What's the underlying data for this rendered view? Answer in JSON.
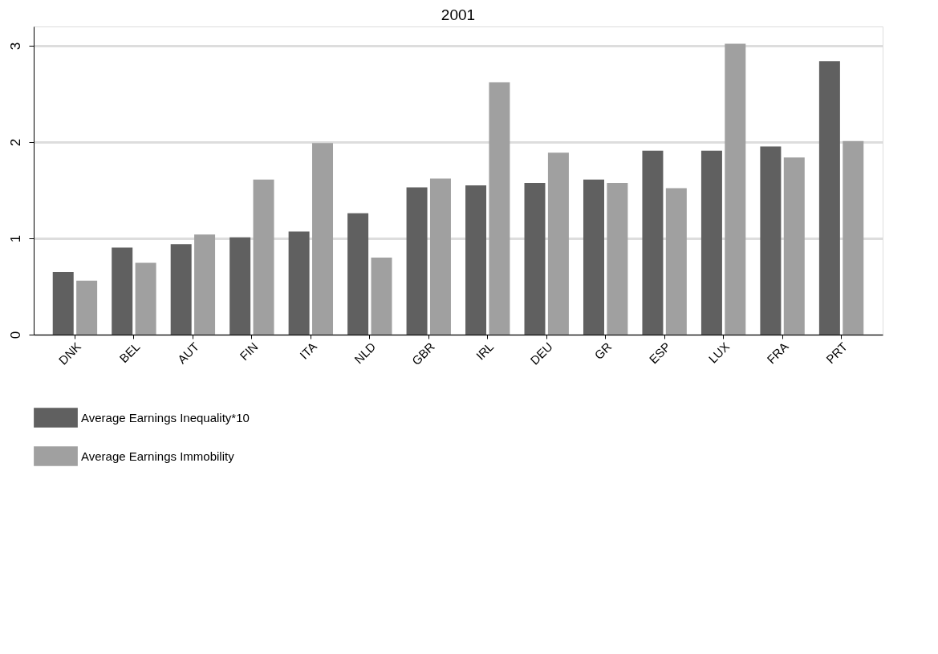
{
  "chart_data": {
    "type": "bar",
    "title": "2001",
    "categories": [
      "DNK",
      "BEL",
      "AUT",
      "FIN",
      "ITA",
      "NLD",
      "GBR",
      "IRL",
      "DEU",
      "GR",
      "ESP",
      "LUX",
      "FRA",
      "PRT"
    ],
    "series": [
      {
        "name": "Average Earnings Inequality*10",
        "color": "#606060",
        "values": [
          0.65,
          0.905,
          0.94,
          1.01,
          1.07,
          1.26,
          1.53,
          1.55,
          1.575,
          1.61,
          1.91,
          1.91,
          1.955,
          2.84
        ]
      },
      {
        "name": "Average Earnings Immobility",
        "color": "#a0a0a0",
        "values": [
          0.56,
          0.745,
          1.04,
          1.61,
          1.99,
          0.8,
          1.62,
          2.62,
          1.89,
          1.575,
          1.52,
          3.02,
          1.84,
          2.01
        ]
      }
    ],
    "ylim": [
      0,
      3.2
    ],
    "yticks": [
      0,
      1,
      2,
      3
    ],
    "grid": "y",
    "legend": "bottom"
  }
}
